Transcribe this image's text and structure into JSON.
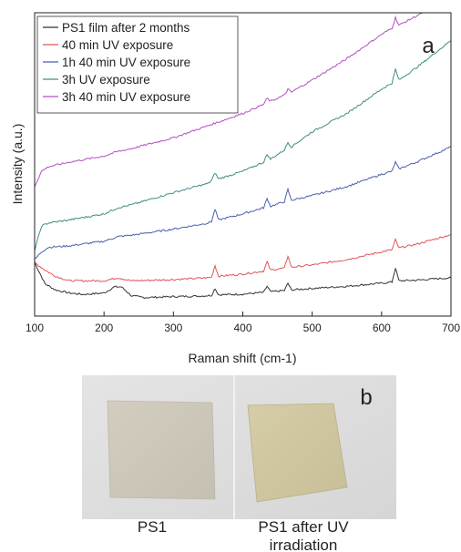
{
  "chart_data": {
    "type": "line",
    "panel_label": "a",
    "xlabel": "Raman shift (cm-1)",
    "ylabel": "Intensity (a.u.)",
    "xlim": [
      100,
      700
    ],
    "ylim": [
      0,
      1
    ],
    "xticks": [
      100,
      200,
      300,
      400,
      500,
      600,
      700
    ],
    "y_ticks_visible": false,
    "grid": false,
    "legend_position": "top-left",
    "series": [
      {
        "name": "PS1 film after 2 months",
        "color": "#333333",
        "points": [
          [
            100,
            0.17
          ],
          [
            115,
            0.1
          ],
          [
            130,
            0.08
          ],
          [
            150,
            0.07
          ],
          [
            170,
            0.065
          ],
          [
            200,
            0.07
          ],
          [
            215,
            0.09
          ],
          [
            225,
            0.09
          ],
          [
            240,
            0.06
          ],
          [
            260,
            0.055
          ],
          [
            300,
            0.058
          ],
          [
            340,
            0.06
          ],
          [
            355,
            0.062
          ],
          [
            360,
            0.085
          ],
          [
            365,
            0.064
          ],
          [
            400,
            0.066
          ],
          [
            430,
            0.072
          ],
          [
            435,
            0.092
          ],
          [
            440,
            0.074
          ],
          [
            460,
            0.078
          ],
          [
            465,
            0.102
          ],
          [
            470,
            0.08
          ],
          [
            500,
            0.085
          ],
          [
            550,
            0.092
          ],
          [
            600,
            0.102
          ],
          [
            615,
            0.106
          ],
          [
            620,
            0.152
          ],
          [
            625,
            0.11
          ],
          [
            650,
            0.112
          ],
          [
            700,
            0.12
          ]
        ]
      },
      {
        "name": "40 min UV exposure",
        "color": "#e05555",
        "points": [
          [
            100,
            0.17
          ],
          [
            115,
            0.145
          ],
          [
            130,
            0.125
          ],
          [
            150,
            0.11
          ],
          [
            200,
            0.11
          ],
          [
            220,
            0.12
          ],
          [
            240,
            0.11
          ],
          [
            300,
            0.114
          ],
          [
            350,
            0.12
          ],
          [
            355,
            0.122
          ],
          [
            360,
            0.16
          ],
          [
            365,
            0.125
          ],
          [
            400,
            0.132
          ],
          [
            430,
            0.142
          ],
          [
            435,
            0.172
          ],
          [
            440,
            0.145
          ],
          [
            460,
            0.152
          ],
          [
            465,
            0.192
          ],
          [
            470,
            0.155
          ],
          [
            500,
            0.162
          ],
          [
            550,
            0.18
          ],
          [
            600,
            0.205
          ],
          [
            615,
            0.212
          ],
          [
            620,
            0.245
          ],
          [
            625,
            0.218
          ],
          [
            650,
            0.23
          ],
          [
            700,
            0.262
          ]
        ]
      },
      {
        "name": "1h 40 min UV exposure",
        "color": "#4a5fb0",
        "points": [
          [
            100,
            0.18
          ],
          [
            110,
            0.205
          ],
          [
            120,
            0.22
          ],
          [
            150,
            0.225
          ],
          [
            200,
            0.24
          ],
          [
            220,
            0.255
          ],
          [
            240,
            0.26
          ],
          [
            300,
            0.28
          ],
          [
            350,
            0.3
          ],
          [
            355,
            0.305
          ],
          [
            360,
            0.345
          ],
          [
            365,
            0.31
          ],
          [
            400,
            0.33
          ],
          [
            430,
            0.35
          ],
          [
            435,
            0.38
          ],
          [
            440,
            0.355
          ],
          [
            460,
            0.37
          ],
          [
            465,
            0.41
          ],
          [
            470,
            0.375
          ],
          [
            500,
            0.39
          ],
          [
            550,
            0.42
          ],
          [
            600,
            0.46
          ],
          [
            615,
            0.47
          ],
          [
            620,
            0.5
          ],
          [
            625,
            0.478
          ],
          [
            650,
            0.5
          ],
          [
            700,
            0.55
          ]
        ]
      },
      {
        "name": "3h UV exposure",
        "color": "#3e8f86",
        "points": [
          [
            100,
            0.21
          ],
          [
            110,
            0.29
          ],
          [
            120,
            0.3
          ],
          [
            150,
            0.31
          ],
          [
            200,
            0.33
          ],
          [
            220,
            0.35
          ],
          [
            240,
            0.36
          ],
          [
            300,
            0.4
          ],
          [
            350,
            0.43
          ],
          [
            355,
            0.44
          ],
          [
            360,
            0.465
          ],
          [
            365,
            0.445
          ],
          [
            400,
            0.47
          ],
          [
            430,
            0.5
          ],
          [
            435,
            0.525
          ],
          [
            440,
            0.51
          ],
          [
            460,
            0.54
          ],
          [
            465,
            0.565
          ],
          [
            470,
            0.55
          ],
          [
            500,
            0.6
          ],
          [
            550,
            0.66
          ],
          [
            600,
            0.74
          ],
          [
            615,
            0.76
          ],
          [
            620,
            0.805
          ],
          [
            625,
            0.77
          ],
          [
            650,
            0.81
          ],
          [
            700,
            0.9
          ]
        ]
      },
      {
        "name": "3h 40 min UV exposure",
        "color": "#b44fc4",
        "points": [
          [
            100,
            0.42
          ],
          [
            110,
            0.47
          ],
          [
            120,
            0.485
          ],
          [
            150,
            0.5
          ],
          [
            200,
            0.52
          ],
          [
            220,
            0.535
          ],
          [
            240,
            0.545
          ],
          [
            300,
            0.58
          ],
          [
            350,
            0.62
          ],
          [
            400,
            0.66
          ],
          [
            430,
            0.69
          ],
          [
            435,
            0.71
          ],
          [
            440,
            0.7
          ],
          [
            460,
            0.72
          ],
          [
            465,
            0.74
          ],
          [
            470,
            0.73
          ],
          [
            500,
            0.77
          ],
          [
            550,
            0.84
          ],
          [
            600,
            0.92
          ],
          [
            615,
            0.94
          ],
          [
            620,
            0.975
          ],
          [
            625,
            0.95
          ],
          [
            650,
            0.98
          ],
          [
            700,
            1.04
          ]
        ]
      }
    ]
  },
  "photo_panel": {
    "panel_label": "b",
    "left_caption": "PS1",
    "right_caption_line1": "PS1 after UV",
    "right_caption_line2": "irradiation"
  }
}
